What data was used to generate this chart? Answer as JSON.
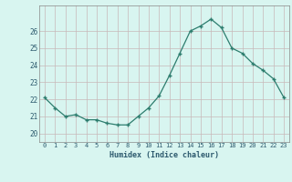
{
  "x": [
    0,
    1,
    2,
    3,
    4,
    5,
    6,
    7,
    8,
    9,
    10,
    11,
    12,
    13,
    14,
    15,
    16,
    17,
    18,
    19,
    20,
    21,
    22,
    23
  ],
  "y": [
    22.1,
    21.5,
    21.0,
    21.1,
    20.8,
    20.8,
    20.6,
    20.5,
    20.5,
    21.0,
    21.5,
    22.2,
    23.4,
    24.7,
    26.0,
    26.3,
    26.7,
    26.2,
    25.0,
    24.7,
    24.1,
    23.7,
    23.2,
    22.1
  ],
  "xlabel": "Humidex (Indice chaleur)",
  "ylim": [
    19.5,
    27.5
  ],
  "xlim": [
    -0.5,
    23.5
  ],
  "yticks": [
    20,
    21,
    22,
    23,
    24,
    25,
    26
  ],
  "xticks": [
    0,
    1,
    2,
    3,
    4,
    5,
    6,
    7,
    8,
    9,
    10,
    11,
    12,
    13,
    14,
    15,
    16,
    17,
    18,
    19,
    20,
    21,
    22,
    23
  ],
  "line_color": "#2d7d6e",
  "marker_color": "#2d7d6e",
  "bg_color": "#d8f5f0",
  "grid_color": "#c8b8b8",
  "xlabel_color": "#2d5a6e",
  "tick_color": "#2d5a6e"
}
